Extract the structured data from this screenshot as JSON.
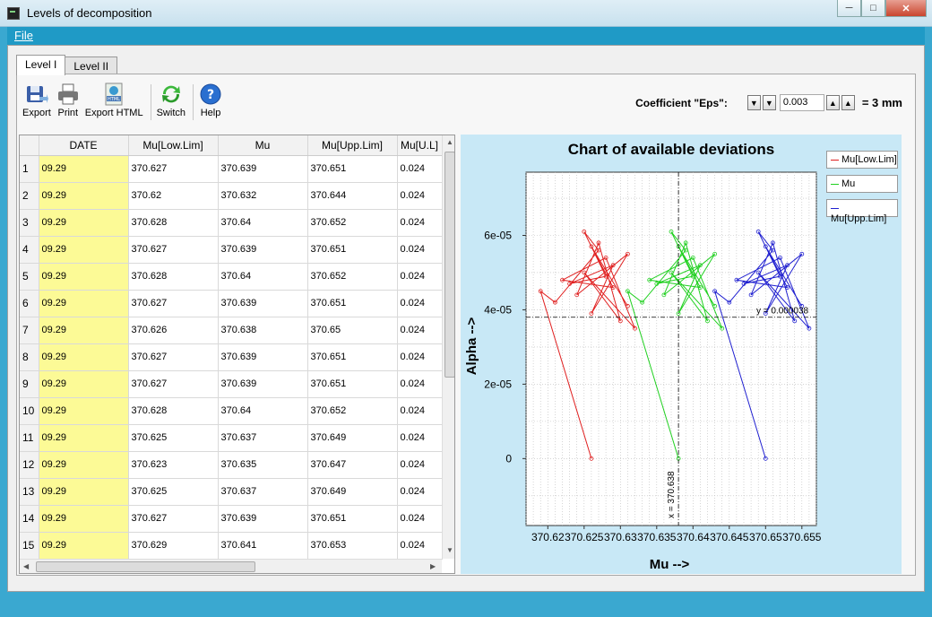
{
  "window": {
    "title": "Levels of decomposition"
  },
  "menu": {
    "file": "File"
  },
  "tabs": [
    {
      "label": "Level I"
    },
    {
      "label": "Level II"
    }
  ],
  "toolbar": {
    "export": "Export",
    "print": "Print",
    "export_html": "Export HTML",
    "export_html_badge": "HTML",
    "switch": "Switch",
    "help": "Help"
  },
  "eps": {
    "label": "Coefficient \"Eps\":",
    "value": "0.003",
    "suffix": "= 3 mm"
  },
  "table": {
    "columns": [
      "DATE",
      "Mu[Low.Lim]",
      "Mu",
      "Mu[Upp.Lim]",
      "Mu[U.L]"
    ],
    "rows": [
      [
        "1",
        "09.29",
        "370.627",
        "370.639",
        "370.651",
        "0.024"
      ],
      [
        "2",
        "09.29",
        "370.62",
        "370.632",
        "370.644",
        "0.024"
      ],
      [
        "3",
        "09.29",
        "370.628",
        "370.64",
        "370.652",
        "0.024"
      ],
      [
        "4",
        "09.29",
        "370.627",
        "370.639",
        "370.651",
        "0.024"
      ],
      [
        "5",
        "09.29",
        "370.628",
        "370.64",
        "370.652",
        "0.024"
      ],
      [
        "6",
        "09.29",
        "370.627",
        "370.639",
        "370.651",
        "0.024"
      ],
      [
        "7",
        "09.29",
        "370.626",
        "370.638",
        "370.65",
        "0.024"
      ],
      [
        "8",
        "09.29",
        "370.627",
        "370.639",
        "370.651",
        "0.024"
      ],
      [
        "9",
        "09.29",
        "370.627",
        "370.639",
        "370.651",
        "0.024"
      ],
      [
        "10",
        "09.29",
        "370.628",
        "370.64",
        "370.652",
        "0.024"
      ],
      [
        "11",
        "09.29",
        "370.625",
        "370.637",
        "370.649",
        "0.024"
      ],
      [
        "12",
        "09.29",
        "370.623",
        "370.635",
        "370.647",
        "0.024"
      ],
      [
        "13",
        "09.29",
        "370.625",
        "370.637",
        "370.649",
        "0.024"
      ],
      [
        "14",
        "09.29",
        "370.627",
        "370.639",
        "370.651",
        "0.024"
      ],
      [
        "15",
        "09.29",
        "370.629",
        "370.641",
        "370.653",
        "0.024"
      ]
    ]
  },
  "chart_data": {
    "type": "line",
    "title": "Chart of available deviations",
    "xlabel": "Mu -->",
    "ylabel": "Alpha -->",
    "xlim": [
      370.617,
      370.657
    ],
    "ylim": [
      -1.8e-05,
      7.7e-05
    ],
    "x_ticks": [
      "370.62",
      "370.625",
      "370.63",
      "370.635",
      "370.64",
      "370.645",
      "370.65",
      "370.655"
    ],
    "x_tick_values": [
      370.62,
      370.625,
      370.63,
      370.635,
      370.64,
      370.645,
      370.65,
      370.655
    ],
    "y_ticks": [
      "0",
      "2e-05",
      "4e-05",
      "6e-05"
    ],
    "y_tick_values": [
      0,
      2e-05,
      4e-05,
      6e-05
    ],
    "grid": true,
    "legend_position": "right",
    "crosshair": {
      "x_value": 370.638,
      "y_value": 3.8e-05,
      "x_label": "x = 370.638",
      "y_label": "y = 0.000038"
    },
    "series": [
      {
        "name": "Mu[Low.Lim]",
        "color": "#e02020",
        "points": [
          [
            370.626,
            0
          ],
          [
            370.619,
            4.5e-05
          ],
          [
            370.621,
            4.2e-05
          ],
          [
            370.627,
            5.6e-05
          ],
          [
            370.625,
            6.1e-05
          ],
          [
            370.628,
            4.9e-05
          ],
          [
            370.623,
            4.7e-05
          ],
          [
            370.629,
            5.2e-05
          ],
          [
            370.626,
            3.9e-05
          ],
          [
            370.631,
            5.5e-05
          ],
          [
            370.624,
            4.4e-05
          ],
          [
            370.627,
            5.8e-05
          ],
          [
            370.63,
            3.7e-05
          ],
          [
            370.625,
            5e-05
          ],
          [
            370.632,
            3.5e-05
          ],
          [
            370.628,
            5.4e-05
          ],
          [
            370.622,
            4.8e-05
          ],
          [
            370.629,
            4.6e-05
          ],
          [
            370.626,
            5.7e-05
          ],
          [
            370.631,
            4.1e-05
          ]
        ]
      },
      {
        "name": "Mu",
        "color": "#20d020",
        "points": [
          [
            370.638,
            0
          ],
          [
            370.631,
            4.5e-05
          ],
          [
            370.633,
            4.2e-05
          ],
          [
            370.639,
            5.6e-05
          ],
          [
            370.637,
            6.1e-05
          ],
          [
            370.64,
            4.9e-05
          ],
          [
            370.635,
            4.7e-05
          ],
          [
            370.641,
            5.2e-05
          ],
          [
            370.638,
            3.9e-05
          ],
          [
            370.643,
            5.5e-05
          ],
          [
            370.636,
            4.4e-05
          ],
          [
            370.639,
            5.8e-05
          ],
          [
            370.642,
            3.7e-05
          ],
          [
            370.637,
            5e-05
          ],
          [
            370.644,
            3.5e-05
          ],
          [
            370.64,
            5.4e-05
          ],
          [
            370.634,
            4.8e-05
          ],
          [
            370.641,
            4.6e-05
          ],
          [
            370.638,
            5.7e-05
          ],
          [
            370.643,
            4.1e-05
          ]
        ]
      },
      {
        "name": "Mu[Upp.Lim]",
        "color": "#2020d0",
        "points": [
          [
            370.65,
            0
          ],
          [
            370.643,
            4.5e-05
          ],
          [
            370.645,
            4.2e-05
          ],
          [
            370.651,
            5.6e-05
          ],
          [
            370.649,
            6.1e-05
          ],
          [
            370.652,
            4.9e-05
          ],
          [
            370.647,
            4.7e-05
          ],
          [
            370.653,
            5.2e-05
          ],
          [
            370.65,
            3.9e-05
          ],
          [
            370.655,
            5.5e-05
          ],
          [
            370.648,
            4.4e-05
          ],
          [
            370.651,
            5.8e-05
          ],
          [
            370.654,
            3.7e-05
          ],
          [
            370.649,
            5e-05
          ],
          [
            370.656,
            3.5e-05
          ],
          [
            370.652,
            5.4e-05
          ],
          [
            370.646,
            4.8e-05
          ],
          [
            370.653,
            4.6e-05
          ],
          [
            370.65,
            5.7e-05
          ],
          [
            370.655,
            4.1e-05
          ]
        ]
      }
    ]
  }
}
